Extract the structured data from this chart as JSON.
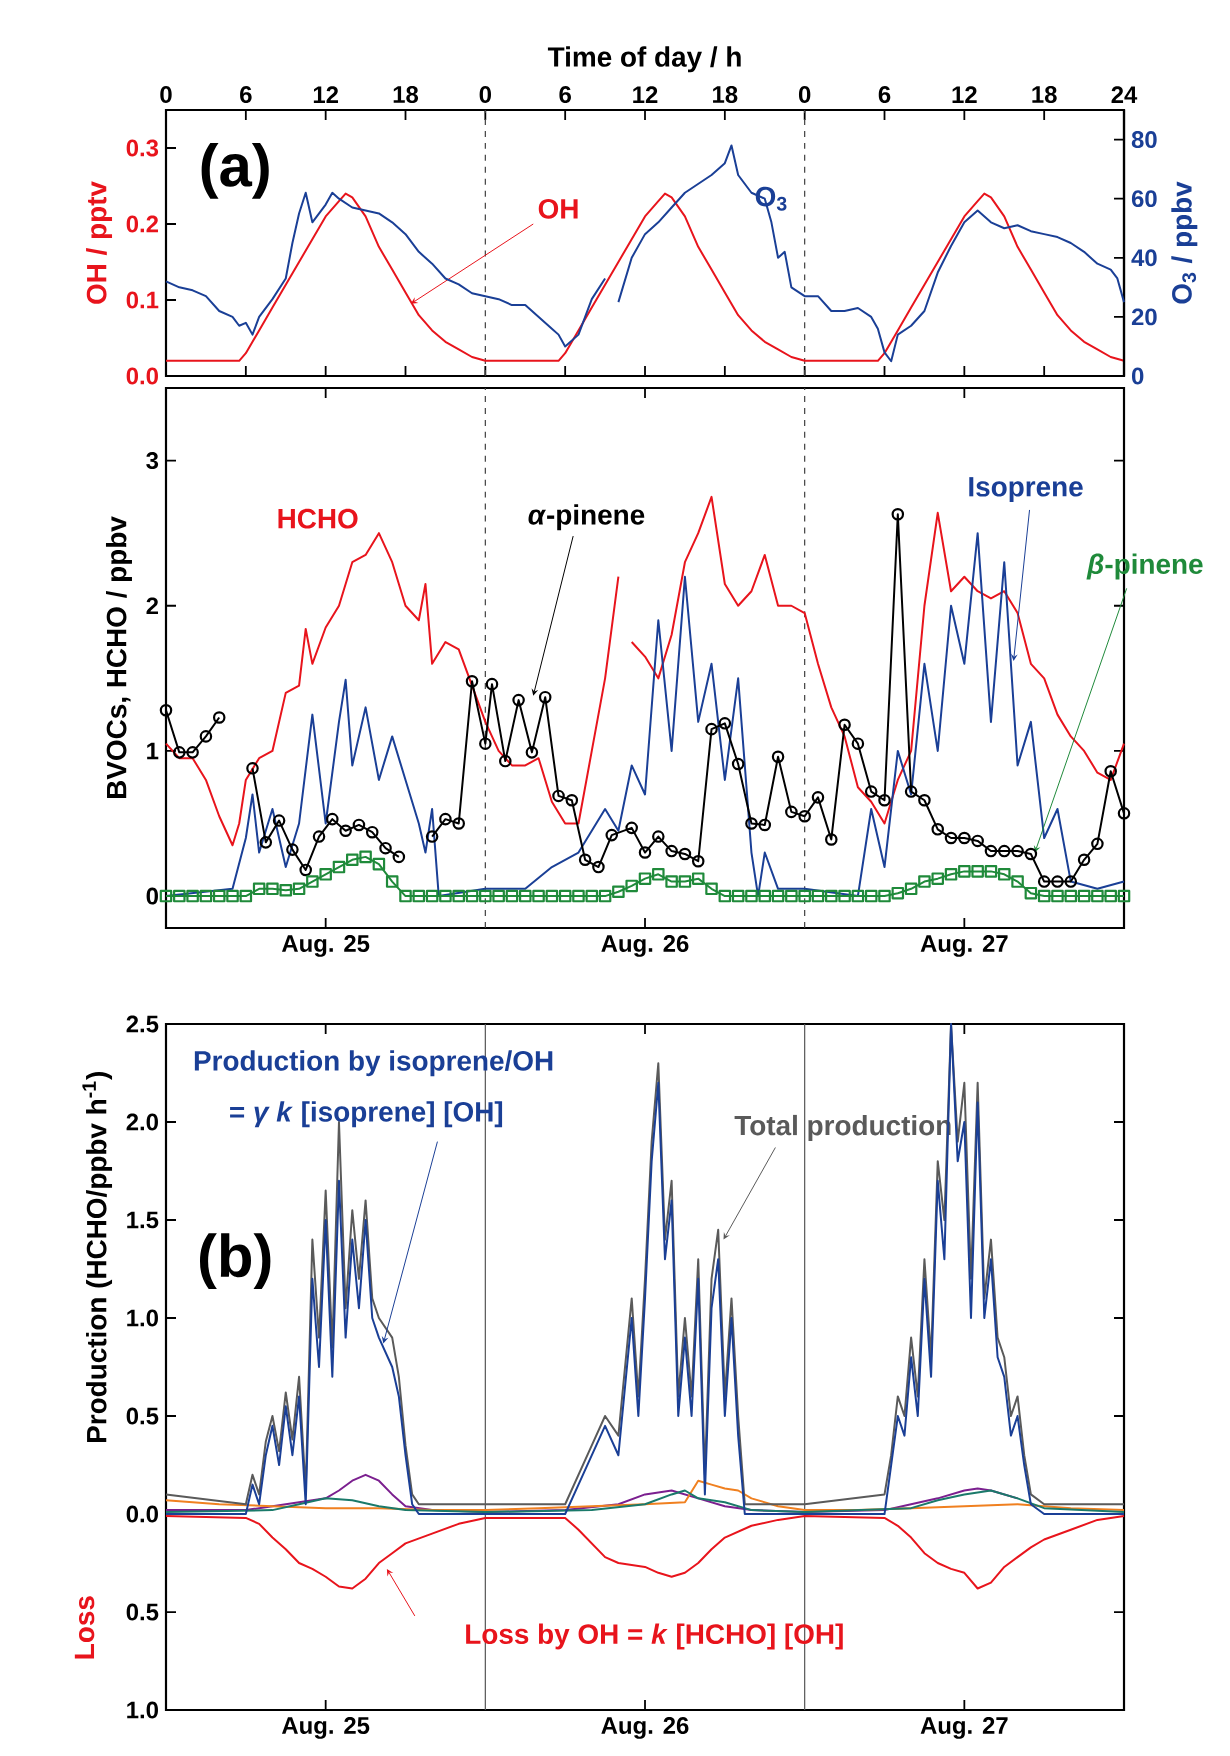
{
  "chart_data": [
    {
      "type": "line",
      "annotations": [
        "(a)"
      ],
      "xlabel": "Time of day / h",
      "ylabel": "OH / pptv",
      "y2label": "O$_{3}$ / ppbv",
      "xlim": [
        "--08-25T00:00",
        "--08-28T00:00"
      ],
      "xticks": [
        {
          "value": "--08-25T00:00",
          "label": "0"
        },
        {
          "value": "--08-25T06:00",
          "label": "6"
        },
        {
          "value": "--08-25T12:00",
          "label": "12"
        },
        {
          "value": "--08-25T18:00",
          "label": "18"
        },
        {
          "value": "--08-26T00:00",
          "label": "0"
        },
        {
          "value": "--08-26T06:00",
          "label": "6"
        },
        {
          "value": "--08-26T12:00",
          "label": "12"
        },
        {
          "value": "--08-26T18:00",
          "label": "18"
        },
        {
          "value": "--08-27T00:00",
          "label": "0"
        },
        {
          "value": "--08-27T06:00",
          "label": "6"
        },
        {
          "value": "--08-27T12:00",
          "label": "12"
        },
        {
          "value": "--08-27T18:00",
          "label": "18"
        },
        {
          "value": "--08-28T00:00",
          "label": "24"
        }
      ],
      "ylim": [
        0,
        0.35
      ],
      "yticks": [
        {
          "value": 0,
          "label": "0.0"
        },
        {
          "value": 0.1,
          "label": "0.1"
        },
        {
          "value": 0.2,
          "label": "0.2"
        },
        {
          "value": 0.3,
          "label": "0.3"
        }
      ],
      "y2lim": [
        0,
        90
      ],
      "y2ticks": [
        0,
        20,
        40,
        60,
        80
      ],
      "ref_lines": [
        {
          "axis": "x",
          "value": "--08-26T00:00",
          "color": "#404040",
          "line_style": "dashed"
        },
        {
          "axis": "x",
          "value": "--08-27T00:00",
          "color": "#404040",
          "line_style": "dashed"
        }
      ],
      "series": [
        {
          "name": "OH",
          "color": "#e8141c",
          "x": [
            "--08-25T00:00",
            "--08-25T05:30",
            "--08-25T06:00",
            "--08-25T07:00",
            "--08-25T08:00",
            "--08-25T09:00",
            "--08-25T10:00",
            "--08-25T11:00",
            "--08-25T12:00",
            "--08-25T13:00",
            "--08-25T13:30",
            "--08-25T14:00",
            "--08-25T15:00",
            "--08-25T16:00",
            "--08-25T17:00",
            "--08-25T18:00",
            "--08-25T19:00",
            "--08-25T20:00",
            "--08-25T21:00",
            "--08-25T22:00",
            "--08-25T23:00",
            "--08-26T00:00",
            "--08-26T05:30",
            "--08-26T06:00",
            "--08-26T07:00",
            "--08-26T08:00",
            "--08-26T09:00",
            "--08-26T10:00",
            "--08-26T11:00",
            "--08-26T12:00",
            "--08-26T13:00",
            "--08-26T13:30",
            "--08-26T14:00",
            "--08-26T15:00",
            "--08-26T16:00",
            "--08-26T17:00",
            "--08-26T18:00",
            "--08-26T19:00",
            "--08-26T20:00",
            "--08-26T21:00",
            "--08-26T22:00",
            "--08-26T23:00",
            "--08-27T00:00",
            "--08-27T05:30",
            "--08-27T06:00",
            "--08-27T07:00",
            "--08-27T08:00",
            "--08-27T09:00",
            "--08-27T10:00",
            "--08-27T11:00",
            "--08-27T12:00",
            "--08-27T13:00",
            "--08-27T13:30",
            "--08-27T14:00",
            "--08-27T15:00",
            "--08-27T16:00",
            "--08-27T17:00",
            "--08-27T18:00",
            "--08-27T19:00",
            "--08-27T20:00",
            "--08-27T21:00",
            "--08-27T22:00",
            "--08-27T23:00",
            "--08-28T00:00"
          ],
          "values": [
            0.02,
            0.02,
            0.03,
            0.06,
            0.09,
            0.12,
            0.15,
            0.18,
            0.21,
            0.23,
            0.24,
            0.235,
            0.21,
            0.17,
            0.14,
            0.11,
            0.08,
            0.06,
            0.045,
            0.035,
            0.025,
            0.02,
            0.02,
            0.03,
            0.06,
            0.09,
            0.12,
            0.15,
            0.18,
            0.21,
            0.23,
            0.24,
            0.235,
            0.21,
            0.17,
            0.14,
            0.11,
            0.08,
            0.06,
            0.045,
            0.035,
            0.025,
            0.02,
            0.02,
            0.03,
            0.06,
            0.09,
            0.12,
            0.15,
            0.18,
            0.21,
            0.23,
            0.24,
            0.235,
            0.21,
            0.17,
            0.14,
            0.11,
            0.08,
            0.06,
            0.045,
            0.035,
            0.025,
            0.02
          ]
        },
        {
          "name": "O$_{3}$",
          "color": "#1a3f96",
          "axis": "y2",
          "x": [
            "--08-25T00:00",
            "--08-25T01:00",
            "--08-25T02:00",
            "--08-25T03:00",
            "--08-25T04:00",
            "--08-25T05:00",
            "--08-25T05:30",
            "--08-25T06:00",
            "--08-25T06:30",
            "--08-25T07:00",
            "--08-25T08:00",
            "--08-25T09:00",
            "--08-25T09:30",
            "--08-25T10:00",
            "--08-25T10:30",
            "--08-25T11:00",
            "--08-25T12:00",
            "--08-25T12:30",
            "--08-25T13:00",
            "--08-25T14:00",
            "--08-25T15:00",
            "--08-25T16:00",
            "--08-25T17:00",
            "--08-25T18:00",
            "--08-25T19:00",
            "--08-25T20:00",
            "--08-25T21:00",
            "--08-25T22:00",
            "--08-25T23:00",
            "--08-26T00:00",
            "--08-26T01:00",
            "--08-26T02:00",
            "--08-26T03:00",
            "--08-26T04:00",
            "--08-26T05:00",
            "--08-26T05:30",
            "--08-26T06:00",
            "--08-26T07:00",
            "--08-26T08:00",
            "--08-26T09:00",
            "--08-26T09:30",
            "--08-26T10:00",
            "--08-26T11:00",
            "--08-26T12:00",
            "--08-26T13:00",
            "--08-26T14:00",
            "--08-26T15:00",
            "--08-26T16:00",
            "--08-26T17:00",
            "--08-26T18:00",
            "--08-26T18:30",
            "--08-26T19:00",
            "--08-26T20:00",
            "--08-26T21:00",
            "--08-26T21:30",
            "--08-26T22:00",
            "--08-26T22:30",
            "--08-26T23:00",
            "--08-27T00:00",
            "--08-27T01:00",
            "--08-27T02:00",
            "--08-27T03:00",
            "--08-27T04:00",
            "--08-27T05:00",
            "--08-27T05:30",
            "--08-27T06:00",
            "--08-27T06:30",
            "--08-27T07:00",
            "--08-27T08:00",
            "--08-27T09:00",
            "--08-27T10:00",
            "--08-27T11:00",
            "--08-27T12:00",
            "--08-27T13:00",
            "--08-27T14:00",
            "--08-27T15:00",
            "--08-27T16:00",
            "--08-27T17:00",
            "--08-27T18:00",
            "--08-27T19:00",
            "--08-27T20:00",
            "--08-27T21:00",
            "--08-27T22:00",
            "--08-27T23:00",
            "--08-27T23:30",
            "--08-28T00:00"
          ],
          "values": [
            32,
            30,
            29,
            27,
            22,
            20,
            17,
            18,
            14,
            20,
            26,
            33,
            45,
            55,
            62,
            52,
            58,
            62,
            60,
            57,
            56,
            55,
            52,
            48,
            42,
            38,
            33,
            31,
            28,
            27,
            26,
            24,
            24,
            20,
            16,
            14,
            10,
            14,
            26,
            33,
            null,
            25,
            40,
            48,
            52,
            57,
            62,
            65,
            68,
            72,
            78,
            68,
            62,
            60,
            52,
            40,
            42,
            30,
            27,
            27,
            22,
            22,
            23,
            20,
            16,
            8,
            5,
            14,
            17,
            22,
            35,
            44,
            52,
            56,
            52,
            50,
            51,
            49,
            48,
            47,
            45,
            42,
            38,
            36,
            33,
            25
          ]
        }
      ]
    },
    {
      "type": "line",
      "ylabel": "BVOCs, HCHO / ppbv",
      "xlim": [
        "--08-25T00:00",
        "--08-28T00:00"
      ],
      "xticks": [
        {
          "value": "--08-25T12:00",
          "label": "Aug. 25"
        },
        {
          "value": "--08-26T12:00",
          "label": "Aug. 26"
        },
        {
          "value": "--08-27T12:00",
          "label": "Aug. 27"
        }
      ],
      "ylim": [
        -0.22,
        3.5
      ],
      "yticks": [
        0,
        1,
        2,
        3
      ],
      "ref_lines": [
        {
          "axis": "x",
          "value": "--08-26T00:00",
          "color": "#404040",
          "line_style": "dashed"
        },
        {
          "axis": "x",
          "value": "--08-27T00:00",
          "color": "#404040",
          "line_style": "dashed"
        }
      ],
      "series": [
        {
          "name": "HCHO",
          "color": "#e8141c",
          "x": [
            "--08-25T00:00",
            "--08-25T01:00",
            "--08-25T02:00",
            "--08-25T03:00",
            "--08-25T04:00",
            "--08-25T05:00",
            "--08-25T05:30",
            "--08-25T06:00",
            "--08-25T07:00",
            "--08-25T08:00",
            "--08-25T09:00",
            "--08-25T10:00",
            "--08-25T10:30",
            "--08-25T11:00",
            "--08-25T12:00",
            "--08-25T13:00",
            "--08-25T14:00",
            "--08-25T15:00",
            "--08-25T16:00",
            "--08-25T17:00",
            "--08-25T18:00",
            "--08-25T19:00",
            "--08-25T19:30",
            "--08-25T20:00",
            "--08-25T21:00",
            "--08-25T22:00",
            "--08-25T23:00",
            "--08-26T00:00",
            "--08-26T01:00",
            "--08-26T02:00",
            "--08-26T03:00",
            "--08-26T04:00",
            "--08-26T05:00",
            "--08-26T06:00",
            "--08-26T07:00",
            "--08-26T08:00",
            "--08-26T09:00",
            "--08-26T10:00",
            "--08-26T10:30",
            "--08-26T11:00",
            "--08-26T12:00",
            "--08-26T13:00",
            "--08-26T14:00",
            "--08-26T15:00",
            "--08-26T16:00",
            "--08-26T17:00",
            "--08-26T18:00",
            "--08-26T19:00",
            "--08-26T20:00",
            "--08-26T21:00",
            "--08-26T22:00",
            "--08-26T23:00",
            "--08-27T00:00",
            "--08-27T01:00",
            "--08-27T02:00",
            "--08-27T03:00",
            "--08-27T04:00",
            "--08-27T05:00",
            "--08-27T06:00",
            "--08-27T07:00",
            "--08-27T08:00",
            "--08-27T09:00",
            "--08-27T10:00",
            "--08-27T11:00",
            "--08-27T12:00",
            "--08-27T13:00",
            "--08-27T14:00",
            "--08-27T15:00",
            "--08-27T16:00",
            "--08-27T17:00",
            "--08-27T18:00",
            "--08-27T19:00",
            "--08-27T20:00",
            "--08-27T21:00",
            "--08-27T22:00",
            "--08-27T23:00",
            "--08-28T00:00"
          ],
          "values": [
            1.05,
            0.95,
            0.95,
            0.8,
            0.55,
            0.35,
            0.5,
            0.8,
            0.95,
            1.0,
            1.4,
            1.45,
            1.84,
            1.6,
            1.85,
            2.0,
            2.3,
            2.35,
            2.5,
            2.3,
            2.0,
            1.9,
            2.15,
            1.6,
            1.75,
            1.7,
            1.45,
            1.2,
            1.0,
            0.9,
            0.9,
            0.95,
            0.65,
            0.5,
            0.5,
            1.0,
            1.5,
            2.2,
            null,
            1.75,
            1.65,
            1.5,
            1.8,
            2.3,
            2.5,
            2.75,
            2.15,
            2.0,
            2.1,
            2.35,
            2.0,
            2.0,
            1.95,
            1.6,
            1.3,
            1.1,
            0.75,
            0.65,
            0.5,
            0.8,
            1.0,
            2.0,
            2.64,
            2.1,
            2.2,
            2.1,
            2.05,
            2.1,
            1.95,
            1.6,
            1.5,
            1.25,
            1.1,
            1.0,
            0.85,
            0.8,
            1.05
          ]
        },
        {
          "name": "Isoprene",
          "color": "#1a3f96",
          "x": [
            "--08-25T00:00",
            "--08-25T05:00",
            "--08-25T06:00",
            "--08-25T06:30",
            "--08-25T07:00",
            "--08-25T08:00",
            "--08-25T09:00",
            "--08-25T10:00",
            "--08-25T11:00",
            "--08-25T12:00",
            "--08-25T13:00",
            "--08-25T13:30",
            "--08-25T14:00",
            "--08-25T15:00",
            "--08-25T16:00",
            "--08-25T17:00",
            "--08-25T18:00",
            "--08-25T19:00",
            "--08-25T19:30",
            "--08-25T20:00",
            "--08-25T20:30",
            "--08-26T00:00",
            "--08-26T03:00",
            "--08-26T05:00",
            "--08-26T07:00",
            "--08-26T09:00",
            "--08-26T10:00",
            "--08-26T11:00",
            "--08-26T12:00",
            "--08-26T13:00",
            "--08-26T14:00",
            "--08-26T15:00",
            "--08-26T16:00",
            "--08-26T17:00",
            "--08-26T18:00",
            "--08-26T19:00",
            "--08-26T20:00",
            "--08-26T20:30",
            "--08-26T21:00",
            "--08-26T22:00",
            "--08-27T00:00",
            "--08-27T04:00",
            "--08-27T05:00",
            "--08-27T06:00",
            "--08-27T07:00",
            "--08-27T08:00",
            "--08-27T09:00",
            "--08-27T10:00",
            "--08-27T11:00",
            "--08-27T12:00",
            "--08-27T13:00",
            "--08-27T14:00",
            "--08-27T15:00",
            "--08-27T16:00",
            "--08-27T17:00",
            "--08-27T18:00",
            "--08-27T19:00",
            "--08-27T20:00",
            "--08-27T22:00",
            "--08-28T00:00"
          ],
          "values": [
            0,
            0.05,
            0.4,
            0.7,
            0.3,
            0.6,
            0.2,
            0.5,
            1.25,
            0.5,
            1.2,
            1.49,
            0.9,
            1.3,
            0.8,
            1.1,
            0.8,
            0.5,
            0.3,
            0.6,
            0,
            0.05,
            0.05,
            0.2,
            0.3,
            0.6,
            0.45,
            0.9,
            0.7,
            1.9,
            1.0,
            2.2,
            1.2,
            1.6,
            0.8,
            1.5,
            0.3,
            0,
            0.3,
            0.05,
            0.05,
            0,
            0.6,
            0.2,
            1.0,
            0.7,
            1.6,
            1.0,
            2.0,
            1.6,
            2.5,
            1.2,
            2.3,
            0.9,
            1.2,
            0.4,
            0.6,
            0.1,
            0.05,
            0.1
          ]
        },
        {
          "name": "*α*-pinene",
          "color": "#000000",
          "marker": "circle",
          "x": [
            "--08-25T00:00",
            "--08-25T01:00",
            "--08-25T02:00",
            "--08-25T03:00",
            "--08-25T04:00",
            "--08-25T05:00",
            "--08-25T06:30",
            "--08-25T07:30",
            "--08-25T08:30",
            "--08-25T09:30",
            "--08-25T10:30",
            "--08-25T11:30",
            "--08-25T12:30",
            "--08-25T13:30",
            "--08-25T14:30",
            "--08-25T15:30",
            "--08-25T16:30",
            "--08-25T17:30",
            "--08-25T19:00",
            "--08-25T20:00",
            "--08-25T21:00",
            "--08-25T22:00",
            "--08-25T23:00",
            "--08-26T00:00",
            "--08-26T00:30",
            "--08-26T01:30",
            "--08-26T02:30",
            "--08-26T03:30",
            "--08-26T04:30",
            "--08-26T05:30",
            "--08-26T06:30",
            "--08-26T07:30",
            "--08-26T08:30",
            "--08-26T09:30",
            "--08-26T11:00",
            "--08-26T12:00",
            "--08-26T13:00",
            "--08-26T14:00",
            "--08-26T15:00",
            "--08-26T16:00",
            "--08-26T17:00",
            "--08-26T18:00",
            "--08-26T19:00",
            "--08-26T20:00",
            "--08-26T21:00",
            "--08-26T22:00",
            "--08-26T23:00",
            "--08-27T00:00",
            "--08-27T01:00",
            "--08-27T02:00",
            "--08-27T03:00",
            "--08-27T04:00",
            "--08-27T05:00",
            "--08-27T06:00",
            "--08-27T07:00",
            "--08-27T08:00",
            "--08-27T09:00",
            "--08-27T10:00",
            "--08-27T11:00",
            "--08-27T12:00",
            "--08-27T13:00",
            "--08-27T14:00",
            "--08-27T15:00",
            "--08-27T16:00",
            "--08-27T17:00",
            "--08-27T18:00",
            "--08-27T19:00",
            "--08-27T20:00",
            "--08-27T21:00",
            "--08-27T22:00",
            "--08-27T23:00",
            "--08-28T00:00"
          ],
          "values": [
            1.28,
            0.99,
            0.99,
            1.1,
            1.23,
            null,
            0.88,
            0.37,
            0.52,
            0.32,
            0.18,
            0.41,
            0.53,
            0.45,
            0.49,
            0.44,
            0.33,
            0.27,
            null,
            0.41,
            0.53,
            0.5,
            1.48,
            1.05,
            1.46,
            0.93,
            1.35,
            0.99,
            1.37,
            0.69,
            0.66,
            0.25,
            0.2,
            0.42,
            0.47,
            0.3,
            0.41,
            0.31,
            0.29,
            0.24,
            1.15,
            1.19,
            0.91,
            0.5,
            0.49,
            0.96,
            0.58,
            0.55,
            0.68,
            0.39,
            1.18,
            1.05,
            0.72,
            0.66,
            2.63,
            0.72,
            0.66,
            0.46,
            0.4,
            0.4,
            0.38,
            0.31,
            0.31,
            0.31,
            0.29,
            0.1,
            0.1,
            0.1,
            0.25,
            0.36,
            0.86,
            0.57
          ]
        },
        {
          "name": "*β*-pinene",
          "color": "#1f8a3a",
          "marker": "square",
          "x": [
            "--08-25T00:00",
            "--08-25T01:00",
            "--08-25T02:00",
            "--08-25T03:00",
            "--08-25T04:00",
            "--08-25T05:00",
            "--08-25T06:00",
            "--08-25T07:00",
            "--08-25T08:00",
            "--08-25T09:00",
            "--08-25T10:00",
            "--08-25T11:00",
            "--08-25T12:00",
            "--08-25T13:00",
            "--08-25T14:00",
            "--08-25T15:00",
            "--08-25T16:00",
            "--08-25T17:00",
            "--08-25T18:00",
            "--08-25T19:00",
            "--08-25T20:00",
            "--08-25T21:00",
            "--08-25T22:00",
            "--08-25T23:00",
            "--08-26T00:00",
            "--08-26T01:00",
            "--08-26T02:00",
            "--08-26T03:00",
            "--08-26T04:00",
            "--08-26T05:00",
            "--08-26T06:00",
            "--08-26T07:00",
            "--08-26T08:00",
            "--08-26T09:00",
            "--08-26T10:00",
            "--08-26T11:00",
            "--08-26T12:00",
            "--08-26T13:00",
            "--08-26T14:00",
            "--08-26T15:00",
            "--08-26T16:00",
            "--08-26T17:00",
            "--08-26T18:00",
            "--08-26T19:00",
            "--08-26T20:00",
            "--08-26T21:00",
            "--08-26T22:00",
            "--08-26T23:00",
            "--08-27T00:00",
            "--08-27T01:00",
            "--08-27T02:00",
            "--08-27T03:00",
            "--08-27T04:00",
            "--08-27T05:00",
            "--08-27T06:00",
            "--08-27T07:00",
            "--08-27T08:00",
            "--08-27T09:00",
            "--08-27T10:00",
            "--08-27T11:00",
            "--08-27T12:00",
            "--08-27T13:00",
            "--08-27T14:00",
            "--08-27T15:00",
            "--08-27T16:00",
            "--08-27T17:00",
            "--08-27T18:00",
            "--08-27T19:00",
            "--08-27T20:00",
            "--08-27T21:00",
            "--08-27T22:00",
            "--08-27T23:00",
            "--08-28T00:00"
          ],
          "values": [
            0,
            0,
            0,
            0,
            0,
            0,
            0,
            0.05,
            0.05,
            0.04,
            0.05,
            0.1,
            0.15,
            0.2,
            0.25,
            0.27,
            0.22,
            0.1,
            0,
            0,
            0,
            0,
            0,
            0,
            0,
            0,
            0,
            0,
            0,
            0,
            0,
            0,
            0,
            0,
            0.03,
            0.07,
            0.12,
            0.15,
            0.1,
            0.1,
            0.12,
            0.05,
            0,
            0,
            0,
            0,
            0,
            0,
            0,
            0,
            0,
            0,
            0,
            0,
            0,
            0.02,
            0.05,
            0.1,
            0.12,
            0.15,
            0.17,
            0.17,
            0.17,
            0.15,
            0.1,
            0.02,
            0,
            0,
            0,
            0,
            0,
            0,
            0
          ]
        }
      ]
    },
    {
      "type": "line",
      "ylabel": "Production (HCHO/ppbv h$^{-1}$)",
      "annotations": [
        "(b)",
        {
          "text": "= *γ k* [isoprene] [OH]",
          "x": "--08-25T16:20",
          "y": 0.87
        },
        "Loss"
      ],
      "xlim": [
        "--08-25T00:00",
        "--08-28T00:00"
      ],
      "xticks": [
        {
          "value": "--08-25T12:00",
          "label": "Aug. 25"
        },
        {
          "value": "--08-26T12:00",
          "label": "Aug. 26"
        },
        {
          "value": "--08-27T12:00",
          "label": "Aug. 27"
        }
      ],
      "ylim": [
        -1.0,
        2.5
      ],
      "yticks": [
        {
          "value": -1.0,
          "label": "1.0"
        },
        {
          "value": -0.5,
          "label": "0.5"
        },
        {
          "value": 0,
          "label": "0.0"
        },
        {
          "value": 0.5,
          "label": "0.5"
        },
        {
          "value": 1.0,
          "label": "1.0"
        },
        {
          "value": 1.5,
          "label": "1.5"
        },
        {
          "value": 2.0,
          "label": "2.0"
        },
        {
          "value": 2.5,
          "label": "2.5"
        }
      ],
      "ref_lines": [
        {
          "axis": "x",
          "value": "--08-26T00:00",
          "color": "#555555",
          "line_style": "solid"
        },
        {
          "axis": "x",
          "value": "--08-27T00:00",
          "color": "#555555",
          "line_style": "solid"
        }
      ],
      "series": [
        {
          "color": "#7b1f8f",
          "x": [
            "--08-25T00:00",
            "--08-25T06:00",
            "--08-25T08:00",
            "--08-25T10:00",
            "--08-25T12:00",
            "--08-25T13:00",
            "--08-25T14:00",
            "--08-25T15:00",
            "--08-25T16:00",
            "--08-25T17:00",
            "--08-25T18:00",
            "--08-25T20:00",
            "--08-26T00:00",
            "--08-26T06:00",
            "--08-26T10:00",
            "--08-26T12:00",
            "--08-26T14:00",
            "--08-26T16:00",
            "--08-26T18:00",
            "--08-26T20:00",
            "--08-27T00:00",
            "--08-27T06:00",
            "--08-27T08:00",
            "--08-27T10:00",
            "--08-27T12:00",
            "--08-27T13:00",
            "--08-27T14:00",
            "--08-27T16:00"
          ],
          "values": [
            0.02,
            0.02,
            0.04,
            0.06,
            0.08,
            0.12,
            0.17,
            0.2,
            0.17,
            0.1,
            0.04,
            0.02,
            0.01,
            0.02,
            0.05,
            0.1,
            0.12,
            0.08,
            0.04,
            0.02,
            0.01,
            0.02,
            0.05,
            0.08,
            0.12,
            0.13,
            0.12,
            0.08
          ]
        },
        {
          "color": "#f08020",
          "x": [
            "--08-25T00:00",
            "--08-25T04:00",
            "--08-25T08:00",
            "--08-25T12:00",
            "--08-25T16:00",
            "--08-25T20:00",
            "--08-26T00:00",
            "--08-26T04:00",
            "--08-26T08:00",
            "--08-26T12:00",
            "--08-26T15:00",
            "--08-26T16:00",
            "--08-26T17:00",
            "--08-26T18:00",
            "--08-26T19:00",
            "--08-26T20:00",
            "--08-26T22:00",
            "--08-27T00:00",
            "--08-27T04:00",
            "--08-27T08:00",
            "--08-27T12:00",
            "--08-27T16:00",
            "--08-27T20:00",
            "--08-28T00:00"
          ],
          "values": [
            0.07,
            0.05,
            0.04,
            0.03,
            0.03,
            0.02,
            0.02,
            0.03,
            0.04,
            0.05,
            0.06,
            0.17,
            0.15,
            0.13,
            0.12,
            0.08,
            0.04,
            0.02,
            0.02,
            0.03,
            0.04,
            0.05,
            0.03,
            0.02
          ]
        },
        {
          "color": "#1a7a6a",
          "x": [
            "--08-25T00:00",
            "--08-25T08:00",
            "--08-25T10:00",
            "--08-25T12:00",
            "--08-25T14:00",
            "--08-25T16:00",
            "--08-25T18:00",
            "--08-26T00:00",
            "--08-26T08:00",
            "--08-26T12:00",
            "--08-26T14:00",
            "--08-26T15:00",
            "--08-26T16:00",
            "--08-26T18:00",
            "--08-26T20:00",
            "--08-27T00:00",
            "--08-27T08:00",
            "--08-27T10:00",
            "--08-27T12:00",
            "--08-27T14:00",
            "--08-27T16:00",
            "--08-27T18:00",
            "--08-28T00:00"
          ],
          "values": [
            0.01,
            0.02,
            0.05,
            0.08,
            0.07,
            0.04,
            0.02,
            0.01,
            0.02,
            0.05,
            0.1,
            0.12,
            0.08,
            0.06,
            0.02,
            0.01,
            0.03,
            0.07,
            0.1,
            0.12,
            0.08,
            0.03,
            0.01
          ]
        },
        {
          "name": "Total production",
          "color": "#5a5a5a",
          "x": [
            "--08-25T00:00",
            "--08-25T06:00",
            "--08-25T06:30",
            "--08-25T07:00",
            "--08-25T07:30",
            "--08-25T08:00",
            "--08-25T08:30",
            "--08-25T09:00",
            "--08-25T09:30",
            "--08-25T10:00",
            "--08-25T10:30",
            "--08-25T11:00",
            "--08-25T11:30",
            "--08-25T12:00",
            "--08-25T12:30",
            "--08-25T13:00",
            "--08-25T13:30",
            "--08-25T14:00",
            "--08-25T14:30",
            "--08-25T15:00",
            "--08-25T15:30",
            "--08-25T16:00",
            "--08-25T17:00",
            "--08-25T17:30",
            "--08-25T18:00",
            "--08-25T18:30",
            "--08-25T19:00",
            "--08-26T00:00",
            "--08-26T06:00",
            "--08-26T07:00",
            "--08-26T08:00",
            "--08-26T09:00",
            "--08-26T10:00",
            "--08-26T11:00",
            "--08-26T11:30",
            "--08-26T12:00",
            "--08-26T12:30",
            "--08-26T13:00",
            "--08-26T13:30",
            "--08-26T14:00",
            "--08-26T14:30",
            "--08-26T15:00",
            "--08-26T15:30",
            "--08-26T16:00",
            "--08-26T16:30",
            "--08-26T17:00",
            "--08-26T17:30",
            "--08-26T18:00",
            "--08-26T18:30",
            "--08-26T19:00",
            "--08-26T19:30",
            "--08-27T00:00",
            "--08-27T06:00",
            "--08-27T06:30",
            "--08-27T07:00",
            "--08-27T07:30",
            "--08-27T08:00",
            "--08-27T08:30",
            "--08-27T09:00",
            "--08-27T09:30",
            "--08-27T10:00",
            "--08-27T10:30",
            "--08-27T11:00",
            "--08-27T11:30",
            "--08-27T12:00",
            "--08-27T12:30",
            "--08-27T13:00",
            "--08-27T13:30",
            "--08-27T14:00",
            "--08-27T14:30",
            "--08-27T15:00",
            "--08-27T15:30",
            "--08-27T16:00",
            "--08-27T16:30",
            "--08-27T17:00",
            "--08-27T18:00",
            "--08-28T00:00"
          ],
          "values": [
            0.1,
            0.05,
            0.2,
            0.1,
            0.37,
            0.5,
            0.32,
            0.62,
            0.38,
            0.7,
            0.12,
            1.4,
            0.9,
            1.65,
            0.85,
            2.0,
            1.05,
            1.55,
            1.2,
            1.6,
            1.1,
            1.0,
            0.9,
            0.7,
            0.35,
            0.1,
            0.05,
            0.05,
            0.05,
            0.2,
            0.35,
            0.5,
            0.4,
            1.1,
            0.6,
            1.2,
            1.9,
            2.3,
            1.4,
            1.7,
            0.6,
            1.0,
            0.6,
            1.3,
            0.2,
            1.2,
            1.45,
            0.6,
            1.1,
            0.5,
            0.05,
            0.05,
            0.1,
            0.3,
            0.6,
            0.5,
            0.9,
            0.6,
            1.3,
            0.8,
            1.8,
            1.5,
            2.5,
            1.9,
            2.2,
            1.2,
            2.2,
            1.1,
            1.4,
            0.9,
            0.8,
            0.5,
            0.6,
            0.3,
            0.1,
            0.05,
            0.05
          ]
        },
        {
          "name": "Production by isoprene/OH",
          "color": "#1a3f96",
          "x": [
            "--08-25T00:00",
            "--08-25T06:00",
            "--08-25T06:30",
            "--08-25T07:00",
            "--08-25T07:30",
            "--08-25T08:00",
            "--08-25T08:30",
            "--08-25T09:00",
            "--08-25T09:30",
            "--08-25T10:00",
            "--08-25T10:30",
            "--08-25T11:00",
            "--08-25T11:30",
            "--08-25T12:00",
            "--08-25T12:30",
            "--08-25T13:00",
            "--08-25T13:30",
            "--08-25T14:00",
            "--08-25T14:30",
            "--08-25T15:00",
            "--08-25T15:30",
            "--08-25T16:00",
            "--08-25T17:00",
            "--08-25T17:30",
            "--08-25T18:00",
            "--08-25T18:30",
            "--08-25T19:00",
            "--08-26T00:00",
            "--08-26T06:00",
            "--08-26T07:00",
            "--08-26T08:00",
            "--08-26T09:00",
            "--08-26T10:00",
            "--08-26T11:00",
            "--08-26T11:30",
            "--08-26T12:00",
            "--08-26T12:30",
            "--08-26T13:00",
            "--08-26T13:30",
            "--08-26T14:00",
            "--08-26T14:30",
            "--08-26T15:00",
            "--08-26T15:30",
            "--08-26T16:00",
            "--08-26T16:30",
            "--08-26T17:00",
            "--08-26T17:30",
            "--08-26T18:00",
            "--08-26T18:30",
            "--08-26T19:00",
            "--08-26T19:30",
            "--08-27T00:00",
            "--08-27T06:00",
            "--08-27T06:30",
            "--08-27T07:00",
            "--08-27T07:30",
            "--08-27T08:00",
            "--08-27T08:30",
            "--08-27T09:00",
            "--08-27T09:30",
            "--08-27T10:00",
            "--08-27T10:30",
            "--08-27T11:00",
            "--08-27T11:30",
            "--08-27T12:00",
            "--08-27T12:30",
            "--08-27T13:00",
            "--08-27T13:30",
            "--08-27T14:00",
            "--08-27T14:30",
            "--08-27T15:00",
            "--08-27T15:30",
            "--08-27T16:00",
            "--08-27T16:30",
            "--08-27T17:00",
            "--08-27T18:00",
            "--08-28T00:00"
          ],
          "values": [
            0,
            0,
            0.15,
            0.05,
            0.3,
            0.45,
            0.25,
            0.55,
            0.3,
            0.6,
            0.05,
            1.2,
            0.75,
            1.5,
            0.7,
            1.7,
            0.9,
            1.4,
            1.05,
            1.5,
            1.0,
            0.9,
            0.75,
            0.6,
            0.3,
            0.05,
            0,
            0,
            0,
            0.15,
            0.3,
            0.45,
            0.3,
            1.0,
            0.5,
            1.1,
            1.8,
            2.2,
            1.3,
            1.6,
            0.5,
            0.9,
            0.5,
            1.2,
            0.1,
            1.05,
            1.3,
            0.5,
            1.0,
            0.4,
            0,
            0,
            0,
            0.25,
            0.5,
            0.4,
            0.8,
            0.5,
            1.2,
            0.7,
            1.7,
            1.3,
            2.5,
            1.8,
            2.0,
            1.0,
            2.1,
            1.0,
            1.3,
            0.8,
            0.7,
            0.4,
            0.5,
            0.25,
            0.05,
            0,
            0
          ]
        },
        {
          "name": "Loss by OH = *k* [HCHO] [OH]",
          "color": "#e8141c",
          "x": [
            "--08-25T00:00",
            "--08-25T06:00",
            "--08-25T07:00",
            "--08-25T08:00",
            "--08-25T09:00",
            "--08-25T10:00",
            "--08-25T11:00",
            "--08-25T12:00",
            "--08-25T13:00",
            "--08-25T14:00",
            "--08-25T15:00",
            "--08-25T16:00",
            "--08-25T17:00",
            "--08-25T18:00",
            "--08-25T20:00",
            "--08-25T22:00",
            "--08-26T00:00",
            "--08-26T06:00",
            "--08-26T07:00",
            "--08-26T08:00",
            "--08-26T09:00",
            "--08-26T10:00",
            "--08-26T11:00",
            "--08-26T12:00",
            "--08-26T13:00",
            "--08-26T14:00",
            "--08-26T15:00",
            "--08-26T16:00",
            "--08-26T17:00",
            "--08-26T18:00",
            "--08-26T20:00",
            "--08-26T22:00",
            "--08-27T00:00",
            "--08-27T06:00",
            "--08-27T07:00",
            "--08-27T08:00",
            "--08-27T09:00",
            "--08-27T10:00",
            "--08-27T11:00",
            "--08-27T12:00",
            "--08-27T13:00",
            "--08-27T14:00",
            "--08-27T15:00",
            "--08-27T16:00",
            "--08-27T17:00",
            "--08-27T18:00",
            "--08-27T20:00",
            "--08-27T22:00",
            "--08-28T00:00"
          ],
          "values": [
            -0.01,
            -0.02,
            -0.05,
            -0.12,
            -0.18,
            -0.25,
            -0.28,
            -0.32,
            -0.37,
            -0.38,
            -0.33,
            -0.25,
            -0.2,
            -0.15,
            -0.1,
            -0.05,
            -0.02,
            -0.02,
            -0.08,
            -0.15,
            -0.22,
            -0.25,
            -0.26,
            -0.27,
            -0.3,
            -0.32,
            -0.3,
            -0.25,
            -0.18,
            -0.12,
            -0.06,
            -0.03,
            -0.01,
            -0.02,
            -0.06,
            -0.12,
            -0.2,
            -0.25,
            -0.28,
            -0.3,
            -0.38,
            -0.35,
            -0.27,
            -0.22,
            -0.17,
            -0.13,
            -0.08,
            -0.03,
            -0.01
          ]
        }
      ]
    }
  ]
}
